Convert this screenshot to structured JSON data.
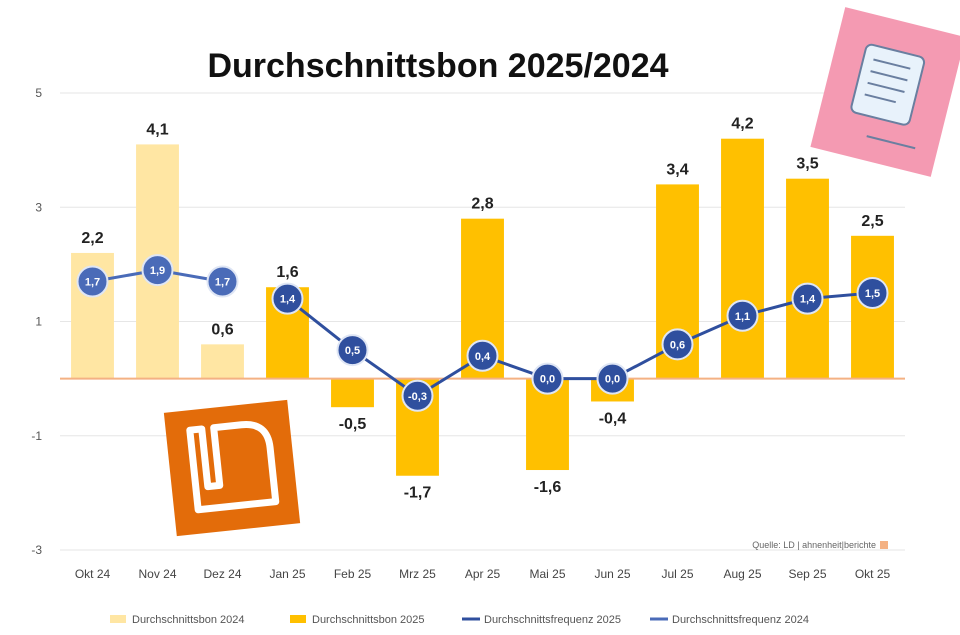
{
  "chart_data": {
    "type": "bar",
    "title": "Durchschnittsbon 2025/2024",
    "categories": [
      "Okt 24",
      "Nov 24",
      "Dez 24",
      "Jan 25",
      "Feb 25",
      "Mrz 25",
      "Apr 25",
      "Mai 25",
      "Jun 25",
      "Jul 25",
      "Aug 25",
      "Sep 25",
      "Okt 25"
    ],
    "ylim": [
      -3,
      5
    ],
    "yticks": [
      "5",
      "3",
      "1",
      "-1",
      "-3"
    ],
    "grid": true,
    "series": [
      {
        "name": "Durchschnittsbon 2024",
        "kind": "bar",
        "color": "#ffe6a3",
        "values": [
          2.2,
          4.1,
          0.6,
          null,
          null,
          null,
          null,
          null,
          null,
          null,
          null,
          null,
          null
        ],
        "labels": [
          "2,2",
          "4,1",
          "0,6",
          "",
          "",
          "",
          "",
          "",
          "",
          "",
          "",
          "",
          ""
        ]
      },
      {
        "name": "Durchschnittsbon 2025",
        "kind": "bar",
        "color": "#ffc000",
        "values": [
          null,
          null,
          null,
          1.6,
          -0.5,
          -1.7,
          2.8,
          -1.6,
          -0.4,
          3.4,
          4.2,
          3.5,
          2.5
        ],
        "labels": [
          "",
          "",
          "",
          "1,6",
          "-0,5",
          "-1,7",
          "2,8",
          "-1,6",
          "-0,4",
          "3,4",
          "4,2",
          "3,5",
          "2,5"
        ]
      },
      {
        "name": "Durchschnittsfrequenz 2025",
        "kind": "line",
        "color": "#2f4f9e",
        "values": [
          null,
          null,
          null,
          1.4,
          0.5,
          -0.3,
          0.4,
          0.0,
          0.0,
          0.6,
          1.1,
          1.4,
          1.5
        ],
        "labels": [
          "",
          "",
          "",
          "1,4",
          "0,5",
          "-0,3",
          "0,4",
          "0,0",
          "0,0",
          "0,6",
          "1,1",
          "1,4",
          "1,5"
        ]
      },
      {
        "name": "Durchschnittsfrequenz 2024",
        "kind": "line",
        "color": "#4a6bb8",
        "values": [
          1.7,
          1.9,
          1.7,
          null,
          null,
          null,
          null,
          null,
          null,
          null,
          null,
          null,
          null
        ],
        "labels": [
          "1,7",
          "1,9",
          "1,7",
          "",
          "",
          "",
          "",
          "",
          "",
          "",
          "",
          "",
          ""
        ]
      }
    ],
    "source": "Quelle: LD | ahnenheit|berichte"
  },
  "icons": {
    "receipt": "receipt-scroll-icon",
    "logo": "ld-logo"
  },
  "colors": {
    "bar2024": "#ffe6a3",
    "bar2025": "#ffc000",
    "line2025": "#2f4f9e",
    "line2024": "#4a6bb8",
    "zero": "#f4b183",
    "note": "#f49ab2",
    "logo": "#e36c0a"
  }
}
